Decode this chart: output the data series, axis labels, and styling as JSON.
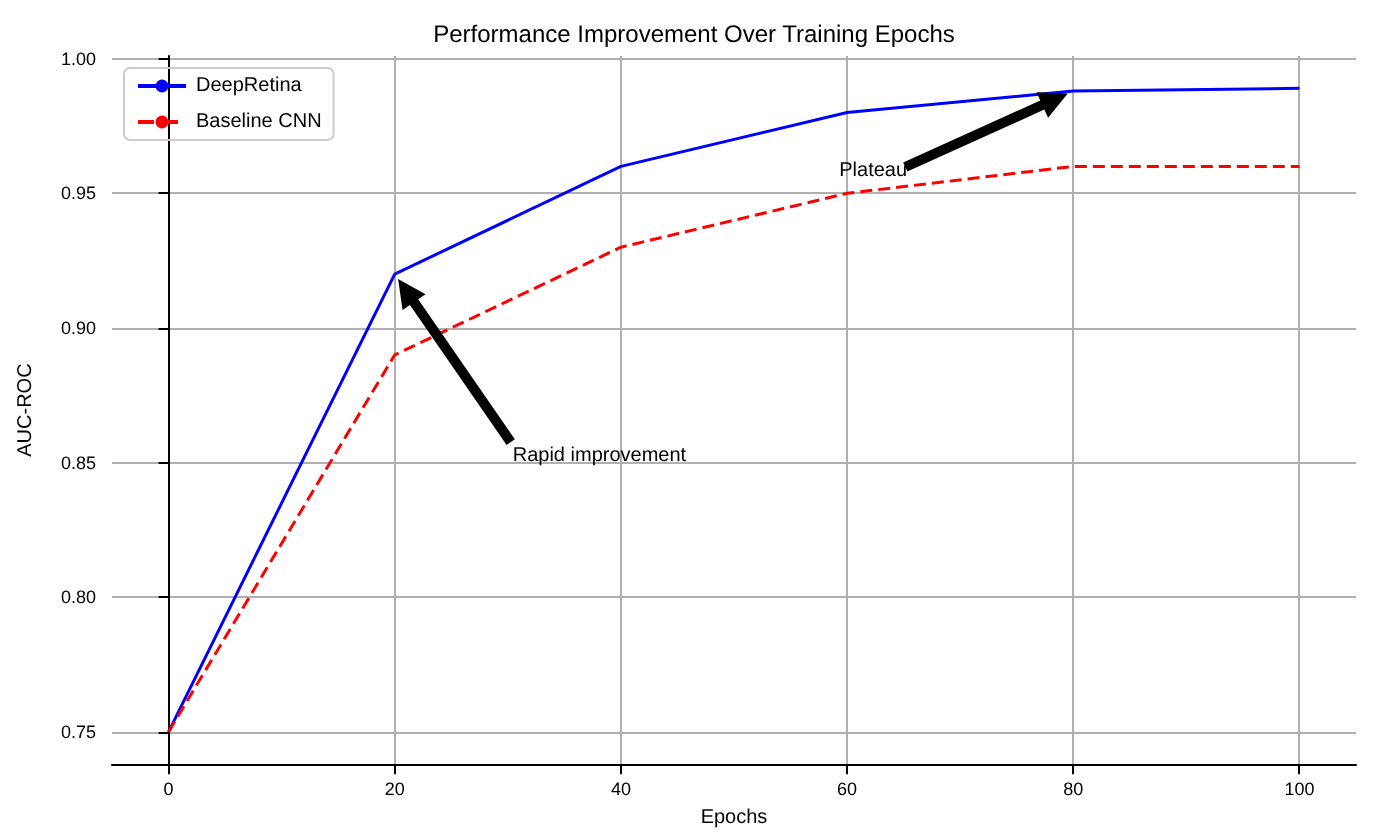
{
  "chart_data": {
    "type": "line",
    "title": "Performance Improvement Over Training Epochs",
    "xlabel": "Epochs",
    "ylabel": "AUC-ROC",
    "x": [
      0,
      20,
      40,
      60,
      80,
      100
    ],
    "series": [
      {
        "name": "DeepRetina",
        "color": "#0000ff",
        "values": [
          0.75,
          0.92,
          0.96,
          0.98,
          0.988,
          0.989
        ],
        "line_style": "solid"
      },
      {
        "name": "Baseline CNN",
        "color": "#ff0000",
        "values": [
          0.75,
          0.89,
          0.93,
          0.95,
          0.96,
          0.96
        ],
        "line_style": "dashed"
      }
    ],
    "xlim": [
      -5,
      105
    ],
    "xticks": [
      0,
      20,
      40,
      60,
      80,
      100
    ],
    "ylim": [
      0.738,
      1.001
    ],
    "yticks": [
      0.75,
      {
        "value": 0.8,
        "label": "0.80"
      },
      0.85,
      {
        "value": 0.9,
        "label": "0.90"
      },
      0.95,
      {
        "value": 1.0,
        "label": "1.00"
      }
    ],
    "grid": true,
    "legend": "top left",
    "marker": "none",
    "annotations": [
      "Rapid improvement",
      "Plateau"
    ]
  }
}
